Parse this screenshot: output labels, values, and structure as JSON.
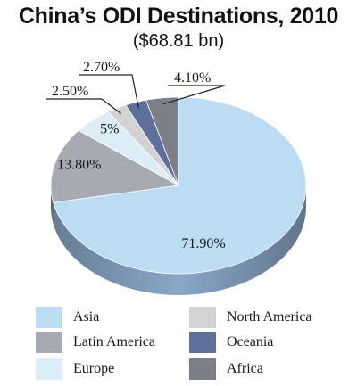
{
  "title": "China’s ODI Destinations, 2010",
  "subtitle": "($68.81 bn)",
  "chart_data": {
    "type": "pie",
    "title": "China’s ODI Destinations, 2010",
    "subtitle": "($68.81 bn)",
    "legend_placement": "bottom",
    "slices": [
      {
        "name": "Asia",
        "value": 71.9,
        "label": "71.90%",
        "color": "#bcdcf4",
        "side": "#8aa7c7"
      },
      {
        "name": "Latin America",
        "value": 13.8,
        "label": "13.80%",
        "color": "#a7aab3",
        "side": "#6d717d"
      },
      {
        "name": "Europe",
        "value": 5,
        "label": "5%",
        "color": "#dcedf8",
        "side": "#a9bfd0"
      },
      {
        "name": "North America",
        "value": 2.5,
        "label": "2.50%",
        "color": "#d2d2d2",
        "side": "#9a9a9a"
      },
      {
        "name": "Oceania",
        "value": 2.7,
        "label": "2.70%",
        "color": "#5e6f99",
        "side": "#3d4a6e"
      },
      {
        "name": "Africa",
        "value": 4.1,
        "label": "4.10%",
        "color": "#7c7f88",
        "side": "#55585f"
      }
    ]
  },
  "legend": {
    "left": [
      {
        "name": "Asia",
        "color": "#bcdcf4"
      },
      {
        "name": "Latin America",
        "color": "#a7aab3"
      },
      {
        "name": "Europe",
        "color": "#dcedf8"
      }
    ],
    "right": [
      {
        "name": "North America",
        "color": "#d2d2d2"
      },
      {
        "name": "Oceania",
        "color": "#5e6f99"
      },
      {
        "name": "Africa",
        "color": "#7c7f88"
      }
    ]
  }
}
